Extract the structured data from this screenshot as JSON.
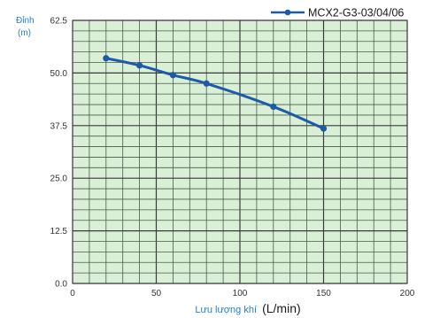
{
  "chart_data": {
    "type": "line",
    "ylabel_line1": "Đỉnh",
    "ylabel_line2": "(m)",
    "xlabel_main": "Lưu lượng khí",
    "xlabel_unit": "(L/min)",
    "xlim": [
      0,
      200
    ],
    "ylim": [
      0,
      62.5
    ],
    "x_ticks": [
      "0",
      "50",
      "100",
      "150",
      "200"
    ],
    "y_ticks": [
      "0.0",
      "12.5",
      "25.0",
      "37.5",
      "50.0",
      "62.5"
    ],
    "grid": true,
    "legend_position": "top-right",
    "series": [
      {
        "name": "MCX2-G3-03/04/06",
        "color": "#1e5aa8",
        "x": [
          20,
          40,
          60,
          80,
          120,
          150
        ],
        "y": [
          53.5,
          51.8,
          49.5,
          47.5,
          42.0,
          36.8
        ]
      }
    ]
  }
}
